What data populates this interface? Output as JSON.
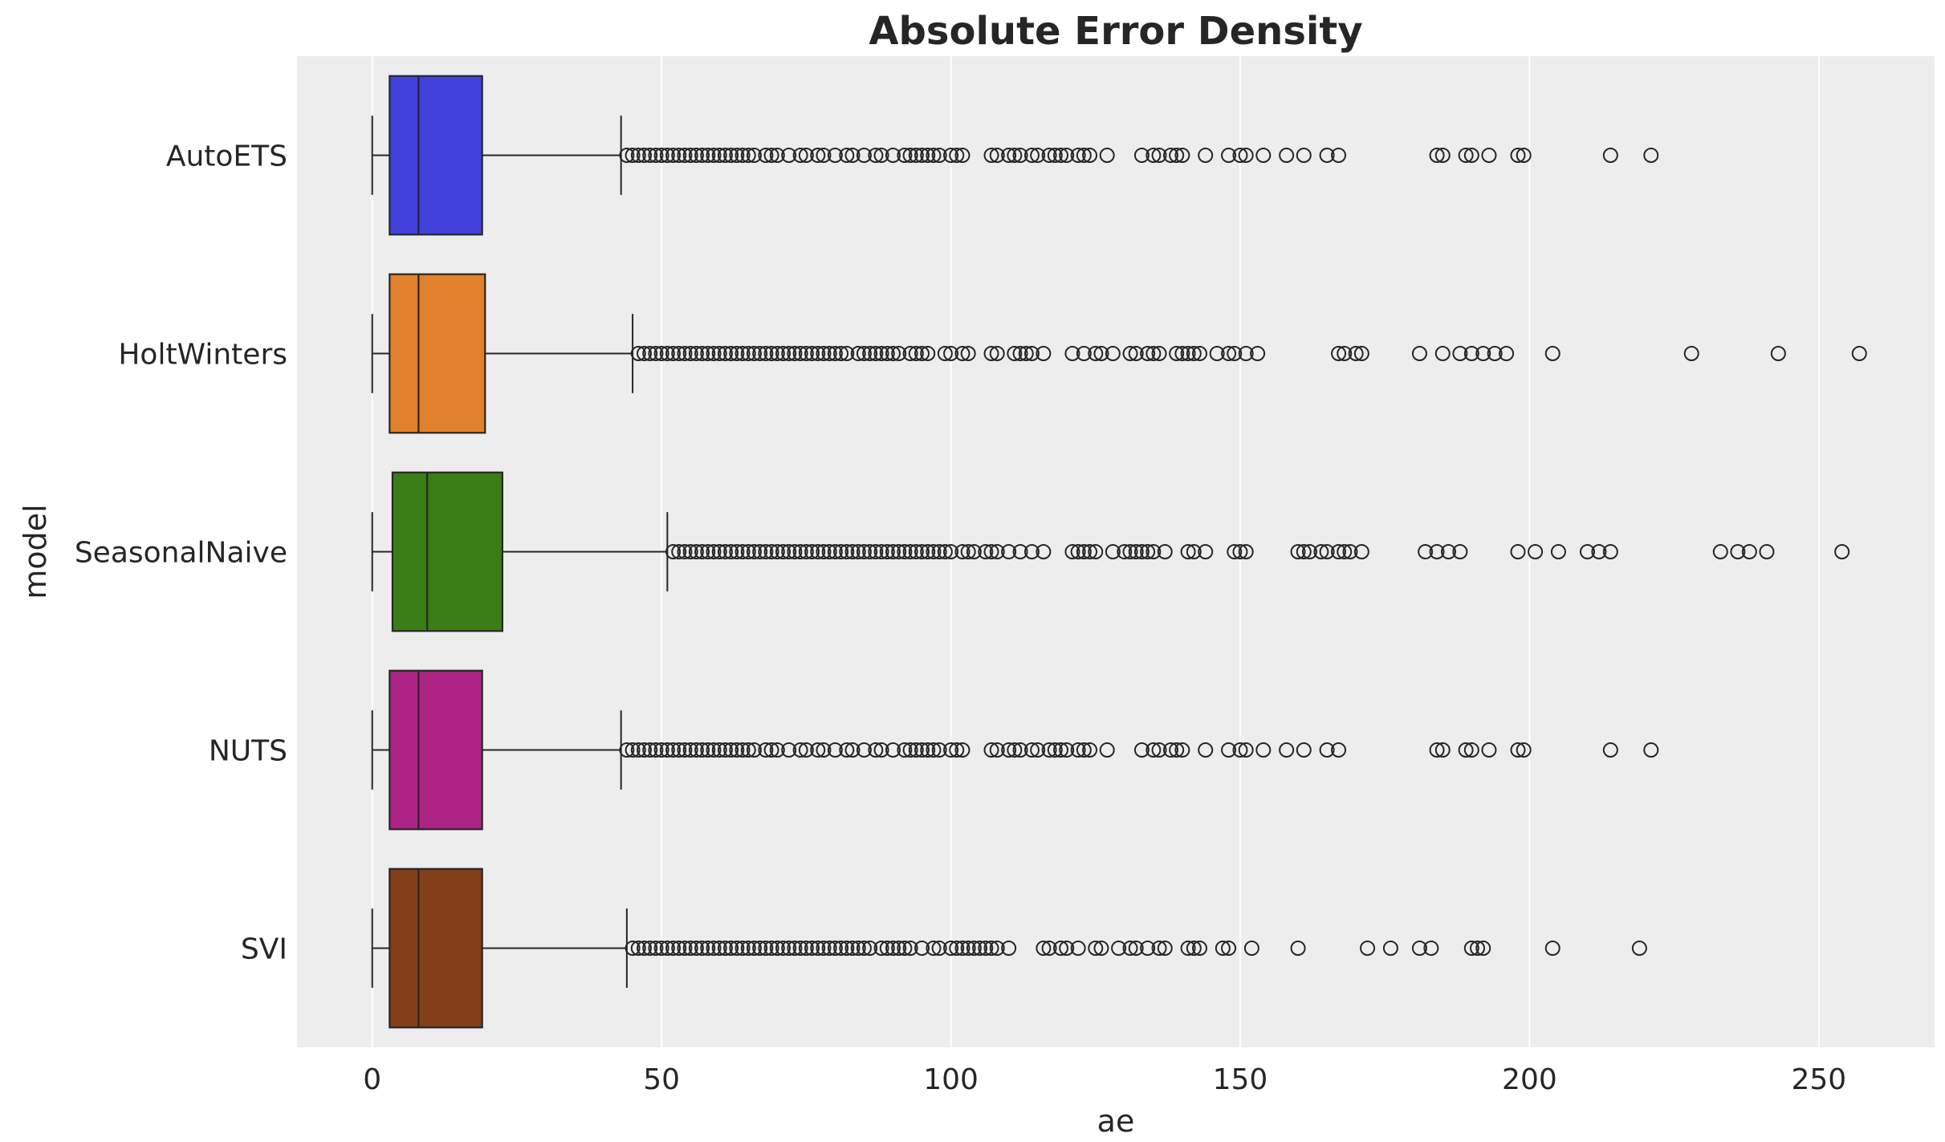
{
  "chart_data": {
    "type": "boxplot",
    "title": "Absolute Error Density",
    "xlabel": "ae",
    "ylabel": "model",
    "xlim": [
      -13,
      270
    ],
    "xticks": [
      0,
      50,
      100,
      150,
      200,
      250
    ],
    "grid": "vertical",
    "background": "#ededed",
    "categories": [
      "AutoETS",
      "HoltWinters",
      "SeasonalNaive",
      "NUTS",
      "SVI"
    ],
    "series": [
      {
        "name": "AutoETS",
        "color": "#4142dc",
        "whisker_low": 0,
        "q1": 3,
        "median": 8,
        "q3": 19,
        "whisker_high": 43,
        "outliers": [
          44,
          45,
          46,
          47,
          48,
          49,
          50,
          51,
          52,
          53,
          54,
          55,
          56,
          57,
          58,
          59,
          60,
          61,
          62,
          63,
          64,
          65,
          66,
          68,
          69,
          70,
          72,
          74,
          75,
          77,
          78,
          80,
          82,
          83,
          85,
          87,
          88,
          90,
          92,
          93,
          94,
          95,
          96,
          97,
          98,
          100,
          101,
          102,
          107,
          108,
          110,
          111,
          112,
          114,
          115,
          117,
          118,
          119,
          120,
          122,
          123,
          124,
          127,
          133,
          135,
          136,
          138,
          139,
          140,
          144,
          148,
          150,
          151,
          154,
          158,
          161,
          165,
          167,
          184,
          185,
          189,
          190,
          193,
          198,
          199,
          214,
          221
        ]
      },
      {
        "name": "HoltWinters",
        "color": "#e1812b",
        "whisker_low": 0,
        "q1": 3,
        "median": 8,
        "q3": 19.5,
        "whisker_high": 45,
        "outliers": [
          46,
          47,
          48,
          49,
          50,
          51,
          52,
          53,
          54,
          55,
          56,
          57,
          58,
          59,
          60,
          61,
          62,
          63,
          64,
          65,
          66,
          67,
          68,
          69,
          70,
          71,
          72,
          73,
          74,
          75,
          76,
          77,
          78,
          79,
          80,
          81,
          82,
          84,
          85,
          86,
          87,
          88,
          89,
          90,
          91,
          93,
          94,
          95,
          96,
          99,
          100,
          102,
          103,
          107,
          108,
          111,
          112,
          113,
          114,
          116,
          121,
          123,
          125,
          126,
          128,
          131,
          132,
          134,
          135,
          136,
          139,
          140,
          141,
          142,
          143,
          146,
          148,
          149,
          151,
          153,
          167,
          168,
          170,
          171,
          181,
          185,
          188,
          190,
          192,
          194,
          196,
          204,
          228,
          243,
          257
        ]
      },
      {
        "name": "SeasonalNaive",
        "color": "#3a7d17",
        "whisker_low": 0,
        "q1": 3.5,
        "median": 9.5,
        "q3": 22.5,
        "whisker_high": 51,
        "outliers": [
          52,
          53,
          54,
          55,
          56,
          57,
          58,
          59,
          60,
          61,
          62,
          63,
          64,
          65,
          66,
          67,
          68,
          69,
          70,
          71,
          72,
          73,
          74,
          75,
          76,
          77,
          78,
          79,
          80,
          81,
          82,
          83,
          84,
          85,
          86,
          87,
          88,
          89,
          90,
          91,
          92,
          93,
          94,
          95,
          96,
          97,
          98,
          99,
          100,
          102,
          103,
          104,
          106,
          107,
          108,
          110,
          112,
          114,
          116,
          121,
          122,
          123,
          124,
          125,
          128,
          130,
          131,
          132,
          133,
          134,
          135,
          137,
          141,
          142,
          144,
          149,
          150,
          151,
          160,
          161,
          162,
          164,
          165,
          167,
          168,
          169,
          171,
          182,
          184,
          186,
          188,
          198,
          201,
          205,
          210,
          212,
          214,
          233,
          236,
          238,
          241,
          254
        ]
      },
      {
        "name": "NUTS",
        "color": "#ac2385",
        "whisker_low": 0,
        "q1": 3,
        "median": 8,
        "q3": 19,
        "whisker_high": 43,
        "outliers": [
          44,
          45,
          46,
          47,
          48,
          49,
          50,
          51,
          52,
          53,
          54,
          55,
          56,
          57,
          58,
          59,
          60,
          61,
          62,
          63,
          64,
          65,
          66,
          68,
          69,
          70,
          72,
          74,
          75,
          77,
          78,
          80,
          82,
          83,
          85,
          87,
          88,
          90,
          92,
          93,
          94,
          95,
          96,
          97,
          98,
          100,
          101,
          102,
          107,
          108,
          110,
          111,
          112,
          114,
          115,
          117,
          118,
          119,
          120,
          122,
          123,
          124,
          127,
          133,
          135,
          136,
          138,
          139,
          140,
          144,
          148,
          150,
          151,
          154,
          158,
          161,
          165,
          167,
          184,
          185,
          189,
          190,
          193,
          198,
          199,
          214,
          221
        ]
      },
      {
        "name": "SVI",
        "color": "#823f19",
        "whisker_low": 0,
        "q1": 3,
        "median": 8,
        "q3": 19,
        "whisker_high": 44,
        "outliers": [
          45,
          46,
          47,
          48,
          49,
          50,
          51,
          52,
          53,
          54,
          55,
          56,
          57,
          58,
          59,
          60,
          61,
          62,
          63,
          64,
          65,
          66,
          67,
          68,
          69,
          70,
          71,
          72,
          73,
          74,
          75,
          76,
          77,
          78,
          79,
          80,
          81,
          82,
          83,
          84,
          85,
          86,
          88,
          89,
          90,
          91,
          92,
          93,
          95,
          97,
          98,
          100,
          101,
          102,
          103,
          104,
          105,
          106,
          107,
          108,
          110,
          116,
          117,
          119,
          120,
          122,
          125,
          126,
          129,
          131,
          132,
          134,
          136,
          137,
          141,
          142,
          143,
          147,
          148,
          152,
          160,
          172,
          176,
          181,
          183,
          190,
          191,
          192,
          204,
          219
        ]
      }
    ]
  }
}
